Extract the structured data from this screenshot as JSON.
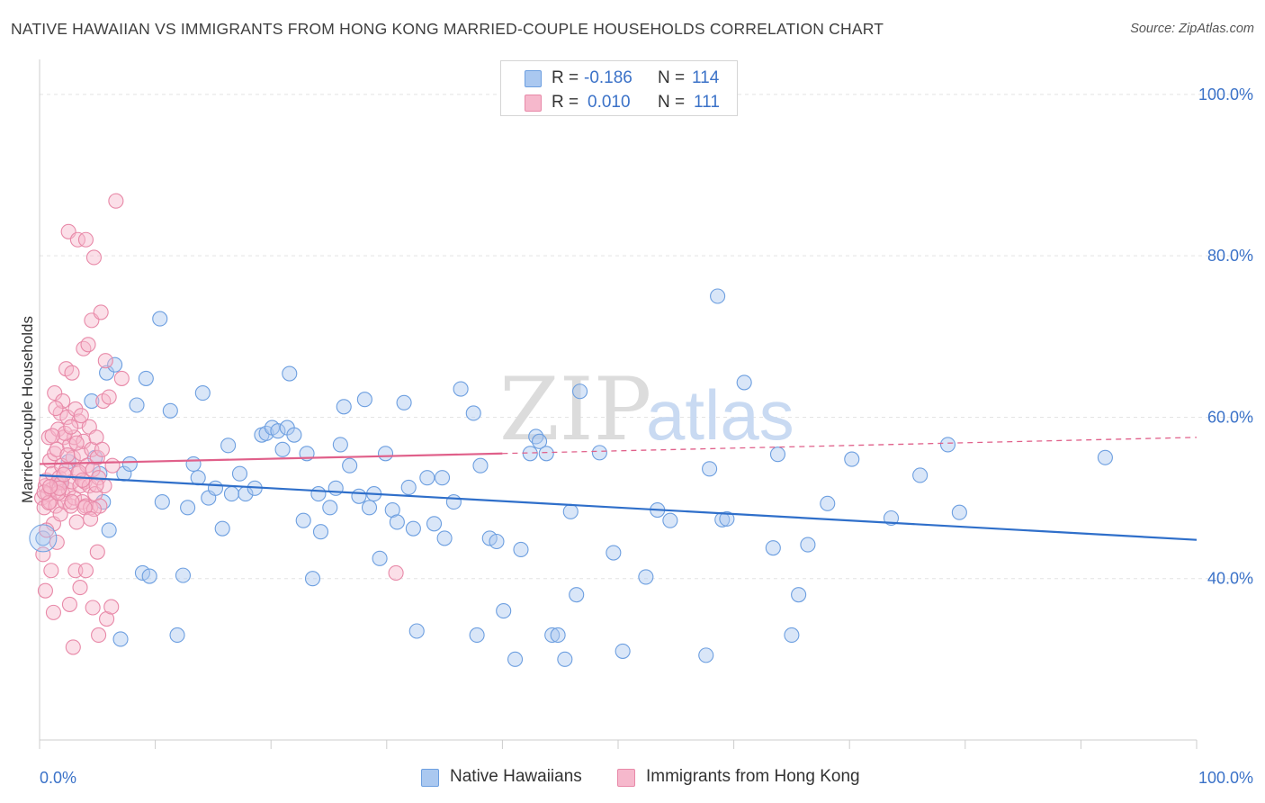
{
  "header": {
    "title": "NATIVE HAWAIIAN VS IMMIGRANTS FROM HONG KONG MARRIED-COUPLE HOUSEHOLDS CORRELATION CHART",
    "source": "Source: ZipAtlas.com"
  },
  "legend_top": {
    "r_label": "R =",
    "n_label": "N =",
    "rows": [
      {
        "r": "-0.186",
        "n": "114"
      },
      {
        "r": "0.010",
        "n": "111"
      }
    ]
  },
  "legend_bottom": {
    "items": [
      "Native Hawaiians",
      "Immigrants from Hong Kong"
    ]
  },
  "watermark": {
    "zip": "ZIP",
    "atlas": "atlas"
  },
  "colors": {
    "blue_fill": "#aac8f0",
    "blue_stroke": "#6d9fe0",
    "blue_line": "#2f6fca",
    "pink_fill": "#f6b8cc",
    "pink_stroke": "#e889a8",
    "pink_line": "#e0608a",
    "axis_text": "#3b72c8",
    "grid": "#e4e4e4"
  },
  "chart_data": {
    "type": "scatter",
    "title": "NATIVE HAWAIIAN VS IMMIGRANTS FROM HONG KONG MARRIED-COUPLE HOUSEHOLDS CORRELATION CHART",
    "xlabel": "",
    "ylabel": "Married-couple Households",
    "xlim": [
      0,
      100
    ],
    "ylim": [
      20,
      103
    ],
    "x_tick_labels": [
      "0.0%",
      "100.0%"
    ],
    "y_ticks": [
      40,
      60,
      80,
      100
    ],
    "y_tick_labels": [
      "40.0%",
      "60.0%",
      "80.0%",
      "100.0%"
    ],
    "grid": true,
    "legend_position": "bottom",
    "series": [
      {
        "name": "Native Hawaiians",
        "R": -0.186,
        "N": 114,
        "trend": {
          "x0": 0,
          "y0": 52.8,
          "x1": 100,
          "y1": 44.8
        },
        "points": [
          [
            0.3,
            45.0
          ],
          [
            1.8,
            52.0
          ],
          [
            2.5,
            54.5
          ],
          [
            4.5,
            62.0
          ],
          [
            4.8,
            55.0
          ],
          [
            5.2,
            53.0
          ],
          [
            5.5,
            49.5
          ],
          [
            6.0,
            46.0
          ],
          [
            5.8,
            65.5
          ],
          [
            6.5,
            66.5
          ],
          [
            7.0,
            32.5
          ],
          [
            7.3,
            53.0
          ],
          [
            7.8,
            54.2
          ],
          [
            8.4,
            61.5
          ],
          [
            8.9,
            40.7
          ],
          [
            9.5,
            40.3
          ],
          [
            9.2,
            64.8
          ],
          [
            10.4,
            72.2
          ],
          [
            10.6,
            49.5
          ],
          [
            11.3,
            60.8
          ],
          [
            11.9,
            33.0
          ],
          [
            12.4,
            40.4
          ],
          [
            12.8,
            48.8
          ],
          [
            13.3,
            54.2
          ],
          [
            13.7,
            52.5
          ],
          [
            14.1,
            63.0
          ],
          [
            14.6,
            50.0
          ],
          [
            15.2,
            51.2
          ],
          [
            15.8,
            46.2
          ],
          [
            16.3,
            56.5
          ],
          [
            16.6,
            50.5
          ],
          [
            17.3,
            53.0
          ],
          [
            17.8,
            50.5
          ],
          [
            18.6,
            51.2
          ],
          [
            19.2,
            57.8
          ],
          [
            19.6,
            58.0
          ],
          [
            20.1,
            58.7
          ],
          [
            20.6,
            58.3
          ],
          [
            21.0,
            56.0
          ],
          [
            21.4,
            58.7
          ],
          [
            21.6,
            65.4
          ],
          [
            22.0,
            57.8
          ],
          [
            22.8,
            47.2
          ],
          [
            23.1,
            55.5
          ],
          [
            23.6,
            40.0
          ],
          [
            24.1,
            50.5
          ],
          [
            24.3,
            45.8
          ],
          [
            25.1,
            48.8
          ],
          [
            25.6,
            51.2
          ],
          [
            26.0,
            56.6
          ],
          [
            26.3,
            61.3
          ],
          [
            26.8,
            54.0
          ],
          [
            27.6,
            50.2
          ],
          [
            28.1,
            62.2
          ],
          [
            28.5,
            48.8
          ],
          [
            28.9,
            50.5
          ],
          [
            29.4,
            42.5
          ],
          [
            29.9,
            55.5
          ],
          [
            30.5,
            48.5
          ],
          [
            30.9,
            47.0
          ],
          [
            31.5,
            61.8
          ],
          [
            31.9,
            51.3
          ],
          [
            32.3,
            46.2
          ],
          [
            32.6,
            33.5
          ],
          [
            33.5,
            52.5
          ],
          [
            34.1,
            46.8
          ],
          [
            34.8,
            52.5
          ],
          [
            35.0,
            45.0
          ],
          [
            35.8,
            49.5
          ],
          [
            36.4,
            63.5
          ],
          [
            37.5,
            60.5
          ],
          [
            37.8,
            33.0
          ],
          [
            38.1,
            54.0
          ],
          [
            38.9,
            45.0
          ],
          [
            39.5,
            44.6
          ],
          [
            40.1,
            36.0
          ],
          [
            41.1,
            30.0
          ],
          [
            41.6,
            43.6
          ],
          [
            42.4,
            55.5
          ],
          [
            42.9,
            57.6
          ],
          [
            43.2,
            57.0
          ],
          [
            43.8,
            55.5
          ],
          [
            44.3,
            33.0
          ],
          [
            44.8,
            33.0
          ],
          [
            45.4,
            30.0
          ],
          [
            45.9,
            48.3
          ],
          [
            46.4,
            38.0
          ],
          [
            46.7,
            63.2
          ],
          [
            48.4,
            55.6
          ],
          [
            49.6,
            43.2
          ],
          [
            50.4,
            31.0
          ],
          [
            52.4,
            40.2
          ],
          [
            53.4,
            48.5
          ],
          [
            54.5,
            47.2
          ],
          [
            57.6,
            30.5
          ],
          [
            57.9,
            53.6
          ],
          [
            59.0,
            47.3
          ],
          [
            59.4,
            47.4
          ],
          [
            58.6,
            75.0
          ],
          [
            60.9,
            64.3
          ],
          [
            63.4,
            43.8
          ],
          [
            63.8,
            55.4
          ],
          [
            65.0,
            33.0
          ],
          [
            65.6,
            38.0
          ],
          [
            66.4,
            44.2
          ],
          [
            68.1,
            49.3
          ],
          [
            70.2,
            54.8
          ],
          [
            73.6,
            47.5
          ],
          [
            76.1,
            52.8
          ],
          [
            78.5,
            56.6
          ],
          [
            79.5,
            48.2
          ],
          [
            92.1,
            55.0
          ]
        ]
      },
      {
        "name": "Immigrants from Hong Kong",
        "R": 0.01,
        "N": 111,
        "trend": {
          "x0": 0,
          "y0": 54.2,
          "x1": 40,
          "y1": 55.5,
          "dashed_to_x": 100,
          "dashed_to_y": 57.5
        },
        "points": [
          [
            0.2,
            50.0
          ],
          [
            0.3,
            43.0
          ],
          [
            0.4,
            48.8
          ],
          [
            0.5,
            38.5
          ],
          [
            0.5,
            51.5
          ],
          [
            0.6,
            52.2
          ],
          [
            0.7,
            50.5
          ],
          [
            0.8,
            57.5
          ],
          [
            0.9,
            54.6
          ],
          [
            0.9,
            49.5
          ],
          [
            1.0,
            51.0
          ],
          [
            1.1,
            53.0
          ],
          [
            1.2,
            46.8
          ],
          [
            1.3,
            63.0
          ],
          [
            1.3,
            55.5
          ],
          [
            1.4,
            49.0
          ],
          [
            1.5,
            51.8
          ],
          [
            1.5,
            44.5
          ],
          [
            1.6,
            58.5
          ],
          [
            1.7,
            52.5
          ],
          [
            1.8,
            48.0
          ],
          [
            1.8,
            60.5
          ],
          [
            1.9,
            54.0
          ],
          [
            2.0,
            50.5
          ],
          [
            2.0,
            62.0
          ],
          [
            2.1,
            57.5
          ],
          [
            2.2,
            49.5
          ],
          [
            2.3,
            53.5
          ],
          [
            2.3,
            66.0
          ],
          [
            2.4,
            60.0
          ],
          [
            2.5,
            51.0
          ],
          [
            2.5,
            83.0
          ],
          [
            2.6,
            56.5
          ],
          [
            2.7,
            49.0
          ],
          [
            2.8,
            52.0
          ],
          [
            2.8,
            65.5
          ],
          [
            2.9,
            55.0
          ],
          [
            3.0,
            50.0
          ],
          [
            3.0,
            57.5
          ],
          [
            3.1,
            61.0
          ],
          [
            3.2,
            47.0
          ],
          [
            3.3,
            53.0
          ],
          [
            3.3,
            82.0
          ],
          [
            3.4,
            59.5
          ],
          [
            3.5,
            51.5
          ],
          [
            3.5,
            38.9
          ],
          [
            3.6,
            55.5
          ],
          [
            3.7,
            49.5
          ],
          [
            3.8,
            68.5
          ],
          [
            3.8,
            57.0
          ],
          [
            3.9,
            52.0
          ],
          [
            4.0,
            82.0
          ],
          [
            4.0,
            49.0
          ],
          [
            4.1,
            54.0
          ],
          [
            4.2,
            69.0
          ],
          [
            4.3,
            58.8
          ],
          [
            4.3,
            51.5
          ],
          [
            4.4,
            48.8
          ],
          [
            4.5,
            56.0
          ],
          [
            4.5,
            72.0
          ],
          [
            4.6,
            53.5
          ],
          [
            4.7,
            79.8
          ],
          [
            4.8,
            50.5
          ],
          [
            4.9,
            57.5
          ],
          [
            5.0,
            55.0
          ],
          [
            5.1,
            52.5
          ],
          [
            5.2,
            49.0
          ],
          [
            5.3,
            73.0
          ],
          [
            5.4,
            56.0
          ],
          [
            5.5,
            62.0
          ],
          [
            5.6,
            51.5
          ],
          [
            5.7,
            67.0
          ],
          [
            5.8,
            35.0
          ],
          [
            6.0,
            62.5
          ],
          [
            6.3,
            54.0
          ],
          [
            6.2,
            36.5
          ],
          [
            6.6,
            86.8
          ],
          [
            7.1,
            64.8
          ],
          [
            1.0,
            41.0
          ],
          [
            1.2,
            35.8
          ],
          [
            0.6,
            46.0
          ],
          [
            1.5,
            56.0
          ],
          [
            2.2,
            58.0
          ],
          [
            2.6,
            36.8
          ],
          [
            2.9,
            31.5
          ],
          [
            3.4,
            53.2
          ],
          [
            4.6,
            36.4
          ],
          [
            5.0,
            43.3
          ],
          [
            5.1,
            33.0
          ],
          [
            3.1,
            41.0
          ],
          [
            4.0,
            41.0
          ],
          [
            4.7,
            48.6
          ],
          [
            3.6,
            60.2
          ],
          [
            1.9,
            51.9
          ],
          [
            2.4,
            55.3
          ],
          [
            1.1,
            57.7
          ],
          [
            0.8,
            49.4
          ],
          [
            1.6,
            50.6
          ],
          [
            0.4,
            50.7
          ],
          [
            2.7,
            58.8
          ],
          [
            3.9,
            48.8
          ],
          [
            4.4,
            47.4
          ],
          [
            1.4,
            61.1
          ],
          [
            30.8,
            40.7
          ],
          [
            2.1,
            52.9
          ],
          [
            2.8,
            49.5
          ],
          [
            3.2,
            56.8
          ],
          [
            1.7,
            51.2
          ],
          [
            4.9,
            51.6
          ],
          [
            0.9,
            51.4
          ],
          [
            3.7,
            52.2
          ]
        ]
      }
    ]
  }
}
